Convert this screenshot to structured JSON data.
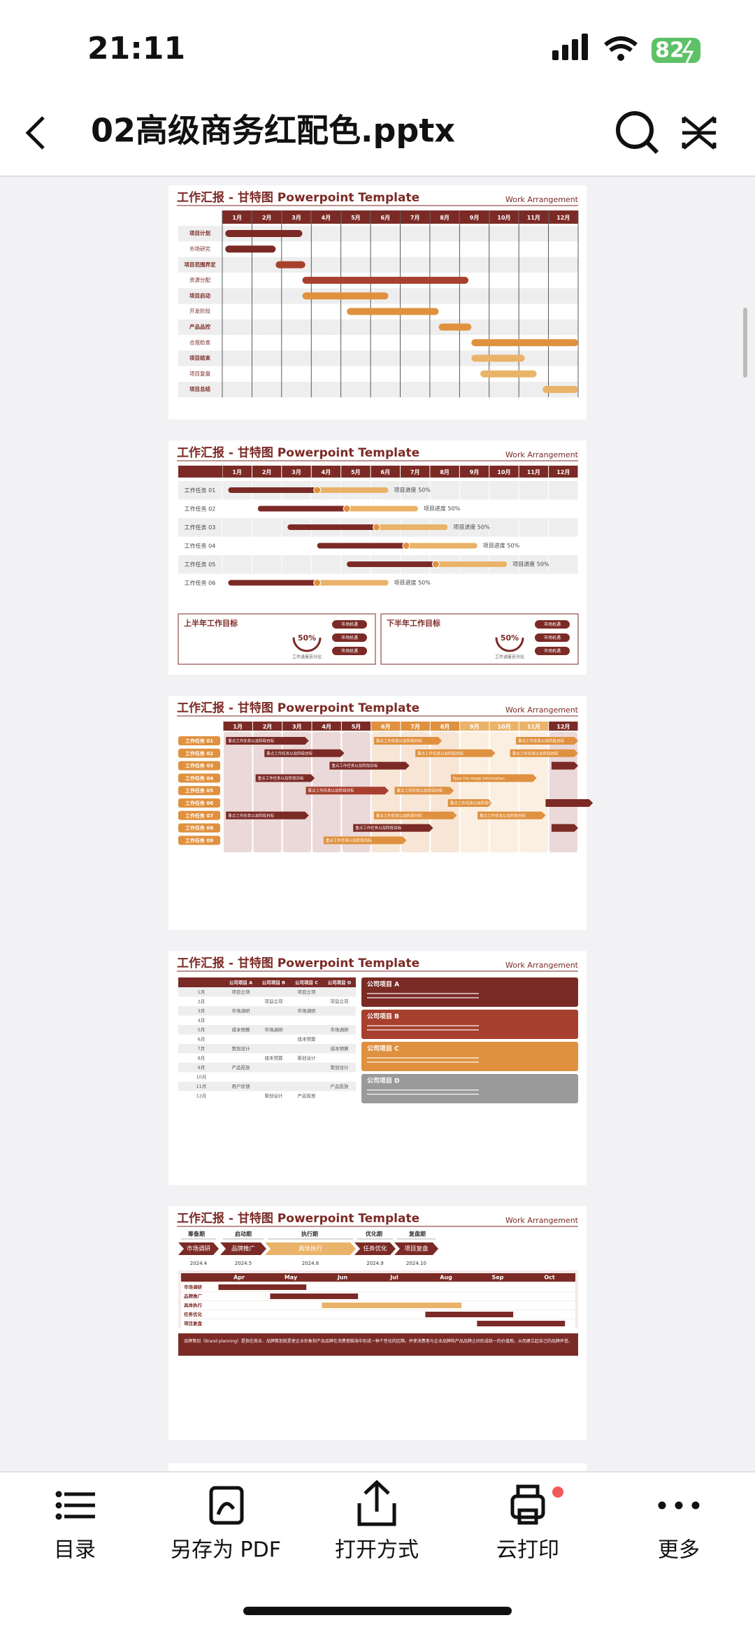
{
  "status_bar": {
    "time": "21:11",
    "battery": "82"
  },
  "header": {
    "title": "02高级商务红配色.pptx"
  },
  "slides": [
    {
      "title": "工作汇报 - 甘特图  Powerpoint Template",
      "subtitle": "Work Arrangement",
      "months": [
        "1月",
        "2月",
        "3月",
        "4月",
        "5月",
        "6月",
        "7月",
        "8月",
        "9月",
        "10月",
        "11月",
        "12月"
      ],
      "tasks": [
        "项目计划",
        "市场研究",
        "项目范围界定",
        "资源分配",
        "项目启动",
        "开发阶段",
        "产品品控",
        "合规检查",
        "项目结束",
        "项目复盘",
        "项目总结"
      ]
    },
    {
      "title": "工作汇报 - 甘特图  Powerpoint Template",
      "subtitle": "Work Arrangement",
      "months": [
        "1月",
        "2月",
        "3月",
        "4月",
        "5月",
        "6月",
        "7月",
        "8月",
        "9月",
        "10月",
        "11月",
        "12月"
      ],
      "tasks": [
        "工作任务 01",
        "工作任务 02",
        "工作任务 03",
        "工作任务 04",
        "工作任务 05",
        "工作任务 06"
      ],
      "progress_label": "项目进度 50%",
      "goals": [
        {
          "title": "上半年工作目标",
          "percent": "50%",
          "caption": "工作进度百分比",
          "buttons": [
            "市场机遇",
            "市场机遇",
            "市场机遇"
          ]
        },
        {
          "title": "下半年工作目标",
          "percent": "50%",
          "caption": "工作进度百分比",
          "buttons": [
            "市场机遇",
            "市场机遇",
            "市场机遇"
          ]
        }
      ]
    },
    {
      "title": "工作汇报 - 甘特图  Powerpoint Template",
      "subtitle": "Work Arrangement",
      "months": [
        "1月",
        "2月",
        "3月",
        "4月",
        "5月",
        "6月",
        "7月",
        "8月",
        "9月",
        "10月",
        "11月",
        "12月"
      ],
      "tasks": [
        "工作任务 01",
        "工作任务 02",
        "工作任务 03",
        "工作任务 04",
        "工作任务 05",
        "工作任务 06",
        "工作任务 07",
        "工作任务 08",
        "工作任务 09"
      ],
      "arrow_text": "重点工作任务以及阶段目标",
      "stage_text": "Type the stage information"
    },
    {
      "title": "工作汇报 - 甘特图  Powerpoint Template",
      "subtitle": "Work Arrangement",
      "columns": [
        "公司项目 A",
        "公司项目 B",
        "公司项目 C",
        "公司项目 D"
      ],
      "months": [
        "1月",
        "2月",
        "3月",
        "4月",
        "5月",
        "6月",
        "7月",
        "8月",
        "9月",
        "10月",
        "11月",
        "12月"
      ],
      "cells": [
        [
          "项目立项",
          null,
          "项目立项",
          null
        ],
        [
          null,
          "项目立项",
          null,
          "项目立项"
        ],
        [
          "市场调研",
          null,
          "市场调研",
          null
        ],
        [
          null,
          null,
          null,
          null
        ],
        [
          "成本预算",
          "市场调研",
          null,
          "市场调研"
        ],
        [
          null,
          null,
          "成本预算",
          null
        ],
        [
          "策划设计",
          null,
          null,
          "成本预算"
        ],
        [
          null,
          "成本预算",
          "策划设计",
          null
        ],
        [
          "产品投放",
          null,
          null,
          "策划设计"
        ],
        [
          null,
          null,
          null,
          null
        ],
        [
          "用户反馈",
          null,
          null,
          "产品投放"
        ],
        [
          null,
          "策划设计",
          "产品投放",
          null
        ]
      ],
      "cards": [
        "公司项目 A",
        "公司项目 B",
        "公司项目 C",
        "公司项目 D"
      ]
    },
    {
      "title": "工作汇报 - 甘特图  Powerpoint Template",
      "subtitle": "Work Arrangement",
      "phases": [
        "筹备期",
        "启动期",
        "执行期",
        "优化期",
        "复盘期"
      ],
      "steps": [
        "市场调研",
        "品牌推广",
        "具体执行",
        "任务优化",
        "项目复盘"
      ],
      "dates": [
        "2024.4",
        "2024.5",
        "2024.8",
        "2024.9",
        "2024.10"
      ],
      "months": [
        "Apr",
        "May",
        "Jun",
        "Jul",
        "Aug",
        "Sep",
        "Oct"
      ],
      "rows": [
        "市场调研",
        "品牌推广",
        "具体执行",
        "任务优化",
        "项目复盘"
      ],
      "footer": "品牌策划（Brand planning）是指在商业、品牌策划就是使企业形象和产品品牌在消费者脑海中形成一种个性化的区隔，并使消费者与企业品牌和产品品牌之间形成统一的价值观，从而建立起自己的品牌声誉。"
    }
  ],
  "toolbar": {
    "items": [
      "目录",
      "另存为 PDF",
      "打开方式",
      "云打印",
      "更多"
    ]
  }
}
